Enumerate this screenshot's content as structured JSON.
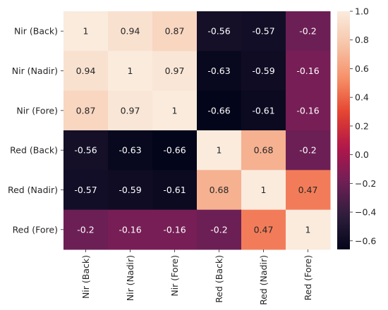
{
  "chart_data": {
    "type": "heatmap",
    "rows": [
      "Nir (Back)",
      "Nir (Nadir)",
      "Nir (Fore)",
      "Red (Back)",
      "Red (Nadir)",
      "Red (Fore)"
    ],
    "columns": [
      "Nir (Back)",
      "Nir (Nadir)",
      "Nir (Fore)",
      "Red (Back)",
      "Red (Nadir)",
      "Red (Fore)"
    ],
    "values": [
      [
        1,
        0.94,
        0.87,
        -0.56,
        -0.57,
        -0.2
      ],
      [
        0.94,
        1,
        0.97,
        -0.63,
        -0.59,
        -0.16
      ],
      [
        0.87,
        0.97,
        1,
        -0.66,
        -0.61,
        -0.16
      ],
      [
        -0.56,
        -0.63,
        -0.66,
        1,
        0.68,
        -0.2
      ],
      [
        -0.57,
        -0.59,
        -0.61,
        0.68,
        1,
        0.47
      ],
      [
        -0.2,
        -0.16,
        -0.16,
        -0.2,
        0.47,
        1
      ]
    ],
    "cell_labels": [
      [
        "1",
        "0.94",
        "0.87",
        "-0.56",
        "-0.57",
        "-0.2"
      ],
      [
        "0.94",
        "1",
        "0.97",
        "-0.63",
        "-0.59",
        "-0.16"
      ],
      [
        "0.87",
        "0.97",
        "1",
        "-0.66",
        "-0.61",
        "-0.16"
      ],
      [
        "-0.56",
        "-0.63",
        "-0.66",
        "1",
        "0.68",
        "-0.2"
      ],
      [
        "-0.57",
        "-0.59",
        "-0.61",
        "0.68",
        "1",
        "0.47"
      ],
      [
        "-0.2",
        "-0.16",
        "-0.16",
        "-0.2",
        "0.47",
        "1"
      ]
    ],
    "colorbar": {
      "range": [
        -0.66,
        1
      ],
      "ticks": [
        -0.6,
        -0.4,
        -0.2,
        0.0,
        0.2,
        0.4,
        0.6,
        0.8,
        1.0
      ],
      "tick_labels": [
        "−0.6",
        "−0.4",
        "−0.2",
        "0.0",
        "0.2",
        "0.4",
        "0.6",
        "0.8",
        "1.0"
      ]
    },
    "colormap": "rocket",
    "colormap_stops": [
      "#03051a",
      "#2e1e3c",
      "#701f57",
      "#b1164a",
      "#e4422e",
      "#f68e66",
      "#f6c4a8",
      "#faebdd"
    ],
    "text_color_dark": "#262626",
    "text_color_light": "#ffffff"
  }
}
